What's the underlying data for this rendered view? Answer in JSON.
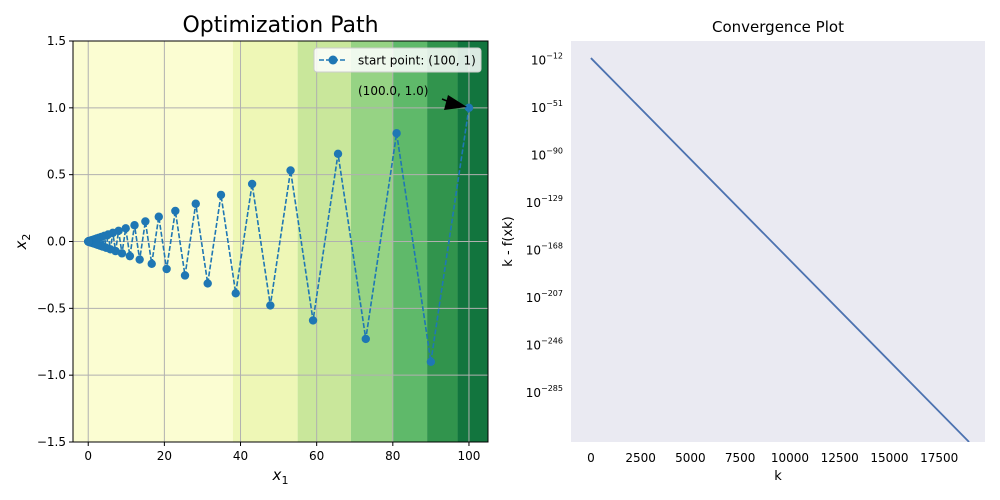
{
  "chart_data": [
    {
      "type": "line",
      "title": "Optimization Path",
      "xlabel": "x",
      "xlabel_sub": "1",
      "ylabel": "x",
      "ylabel_sub": "2",
      "xlim": [
        -4,
        105
      ],
      "ylim": [
        -1.5,
        1.5
      ],
      "xticks": [
        0,
        20,
        40,
        60,
        80,
        100
      ],
      "yticks": [
        -1.5,
        -1.0,
        -0.5,
        0.0,
        0.5,
        1.0,
        1.5
      ],
      "xtick_labels": [
        "0",
        "20",
        "40",
        "60",
        "80",
        "100"
      ],
      "ytick_labels": [
        "−1.5",
        "−1.0",
        "−0.5",
        "0.0",
        "0.5",
        "1.0",
        "1.5"
      ],
      "grid": true,
      "legend": {
        "label": "start point: (100, 1)",
        "position": "top-right"
      },
      "annotation": {
        "text": "(100.0, 1.0)",
        "x": 100,
        "y": 1.0
      },
      "contour_bands_x": [
        38,
        55,
        69,
        80,
        89,
        97
      ],
      "contour_colors": [
        "#fbfdd2",
        "#eef7b6",
        "#c9e79b",
        "#96d384",
        "#5fb96a",
        "#31944d",
        "#12753e"
      ],
      "series": [
        {
          "name": "start point: (100, 1)",
          "x0": 100,
          "y0": 1,
          "ratio": 0.9,
          "n_points": 80,
          "color": "#1f77b4"
        }
      ]
    },
    {
      "type": "line",
      "title": "Convergence Plot",
      "xlabel": "k",
      "ylabel": "k - f(xk)",
      "yscale": "log",
      "xlim": [
        -1000,
        19800
      ],
      "ylim_log10": [
        -325,
        4
      ],
      "xticks": [
        0,
        2500,
        5000,
        7500,
        10000,
        12500,
        15000,
        17500
      ],
      "xtick_labels": [
        "0",
        "2500",
        "5000",
        "7500",
        "10000",
        "12500",
        "15000",
        "17500"
      ],
      "ytick_exponents": [
        -12,
        -51,
        -90,
        -129,
        -168,
        -207,
        -246,
        -285
      ],
      "ytick_base": "10",
      "background": "#eaeaf2",
      "series": [
        {
          "name": "",
          "x": [
            0,
            19000
          ],
          "log10_y": [
            -10,
            -325
          ],
          "color": "#4c72b0"
        }
      ]
    }
  ]
}
